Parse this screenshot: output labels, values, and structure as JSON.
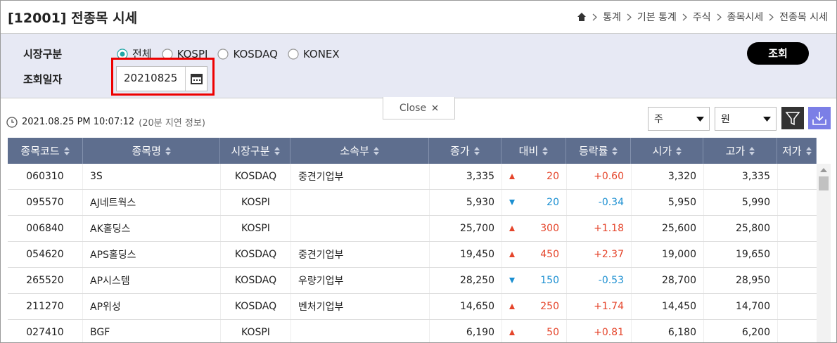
{
  "header": {
    "title": "[12001] 전종목 시세",
    "breadcrumb": [
      "통계",
      "기본 통계",
      "주식",
      "종목시세",
      "전종목 시세"
    ]
  },
  "filters": {
    "market_label": "시장구분",
    "market_options": [
      "전체",
      "KOSPI",
      "KOSDAQ",
      "KONEX"
    ],
    "selected_market": 0,
    "date_label": "조회일자",
    "date": "20210825",
    "search_button": "조회"
  },
  "close_tab": "Close",
  "info": {
    "timestamp": "2021.08.25 PM 10:07:12",
    "delay_note": "(20분 지연 정보)",
    "period_select": "주",
    "currency_select": "원"
  },
  "table": {
    "columns": [
      "종목코드",
      "종목명",
      "시장구분",
      "소속부",
      "종가",
      "대비",
      "등락률",
      "시가",
      "고가",
      "저가"
    ],
    "rows": [
      {
        "code": "060310",
        "name": "3S",
        "market": "KOSDAQ",
        "division": "중견기업부",
        "close": "3,335",
        "direction": "up",
        "change": "20",
        "rate": "+0.60",
        "open": "3,320",
        "high": "3,335"
      },
      {
        "code": "095570",
        "name": "AJ네트웍스",
        "market": "KOSPI",
        "division": "",
        "close": "5,930",
        "direction": "down",
        "change": "20",
        "rate": "-0.34",
        "open": "5,950",
        "high": "5,990"
      },
      {
        "code": "006840",
        "name": "AK홀딩스",
        "market": "KOSPI",
        "division": "",
        "close": "25,700",
        "direction": "up",
        "change": "300",
        "rate": "+1.18",
        "open": "25,600",
        "high": "25,800"
      },
      {
        "code": "054620",
        "name": "APS홀딩스",
        "market": "KOSDAQ",
        "division": "중견기업부",
        "close": "19,450",
        "direction": "up",
        "change": "450",
        "rate": "+2.37",
        "open": "19,000",
        "high": "19,650"
      },
      {
        "code": "265520",
        "name": "AP시스템",
        "market": "KOSDAQ",
        "division": "우량기업부",
        "close": "28,250",
        "direction": "down",
        "change": "150",
        "rate": "-0.53",
        "open": "28,700",
        "high": "28,950"
      },
      {
        "code": "211270",
        "name": "AP위성",
        "market": "KOSDAQ",
        "division": "벤처기업부",
        "close": "14,650",
        "direction": "up",
        "change": "250",
        "rate": "+1.74",
        "open": "14,450",
        "high": "14,700"
      },
      {
        "code": "027410",
        "name": "BGF",
        "market": "KOSPI",
        "division": "",
        "close": "6,190",
        "direction": "up",
        "change": "50",
        "rate": "+0.81",
        "open": "6,180",
        "high": "6,200"
      }
    ]
  }
}
